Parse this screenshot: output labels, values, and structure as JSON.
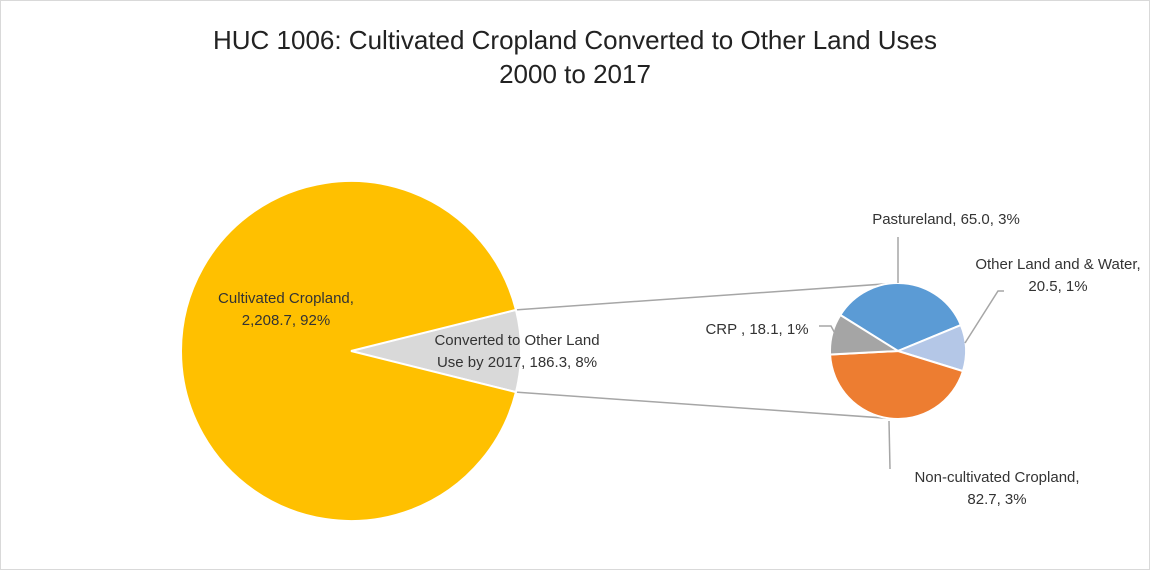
{
  "chart_data": {
    "type": "pie",
    "title_line1": "HUC 1006: Cultivated Cropland Converted to Other Land Uses",
    "title_line2": "2000 to 2017",
    "main_pie": {
      "slices": [
        {
          "name": "Cultivated Cropland",
          "value": 2208.7,
          "percent": 92,
          "color": "#FFC000",
          "label_lines": [
            "Cultivated Cropland,",
            "2,208.7, 92%"
          ]
        },
        {
          "name": "Converted to Other Land Use by 2017",
          "value": 186.3,
          "percent": 8,
          "color": "#D9D9D9",
          "label_lines": [
            "Converted to Other Land",
            "Use by 2017, 186.3, 8%"
          ]
        }
      ]
    },
    "secondary_pie": {
      "slices": [
        {
          "name": "Pastureland",
          "value": 65.0,
          "percent": 3,
          "color": "#5B9BD5",
          "label_lines": [
            "Pastureland, 65.0, 3%"
          ]
        },
        {
          "name": "Other Land and & Water",
          "value": 20.5,
          "percent": 1,
          "color": "#B4C7E7",
          "label_lines": [
            "Other Land and & Water,",
            "20.5, 1%"
          ]
        },
        {
          "name": "Non-cultivated Cropland",
          "value": 82.7,
          "percent": 3,
          "color": "#ED7D31",
          "label_lines": [
            "Non-cultivated Cropland,",
            "82.7, 3%"
          ]
        },
        {
          "name": "CRP",
          "value": 18.1,
          "percent": 1,
          "color": "#A5A5A5",
          "label_lines": [
            "CRP , 18.1, 1%"
          ]
        }
      ]
    }
  }
}
